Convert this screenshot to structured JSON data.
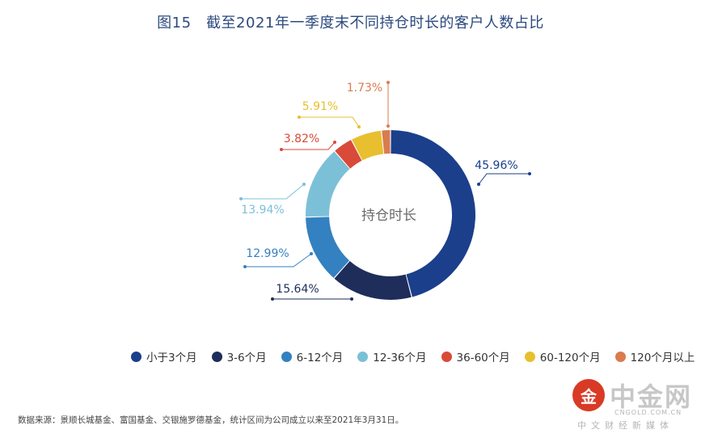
{
  "title": "图15　截至2021年一季度末不同持仓时长的客户人数占比",
  "center_label": "持仓时长",
  "chart_data": {
    "type": "pie",
    "title": "图15　截至2021年一季度末不同持仓时长的客户人数占比",
    "center_label": "持仓时长",
    "categories": [
      "小于3个月",
      "3-6个月",
      "6-12个月",
      "12-36个月",
      "36-60个月",
      "60-120个月",
      "120个月以上"
    ],
    "values": [
      45.96,
      15.64,
      12.99,
      13.94,
      3.82,
      5.91,
      1.73
    ],
    "value_labels": [
      "45.96%",
      "15.64%",
      "12.99%",
      "13.94%",
      "3.82%",
      "5.91%",
      "1.73%"
    ],
    "colors": [
      "#1b3f8b",
      "#1e2d5a",
      "#3381c0",
      "#7cc0d8",
      "#d94a38",
      "#e7bf2f",
      "#d97c4e"
    ],
    "legend_position": "bottom"
  },
  "source_text": "数据来源：景顺长城基金、富国基金、交银施罗德基金，统计区间为公司成立以来至2021年3月31日。",
  "watermark": {
    "logo_glyph": "金",
    "name": "中金网",
    "url": "CNGOLD.COM.CN",
    "slogan": "中文财经新媒体"
  }
}
